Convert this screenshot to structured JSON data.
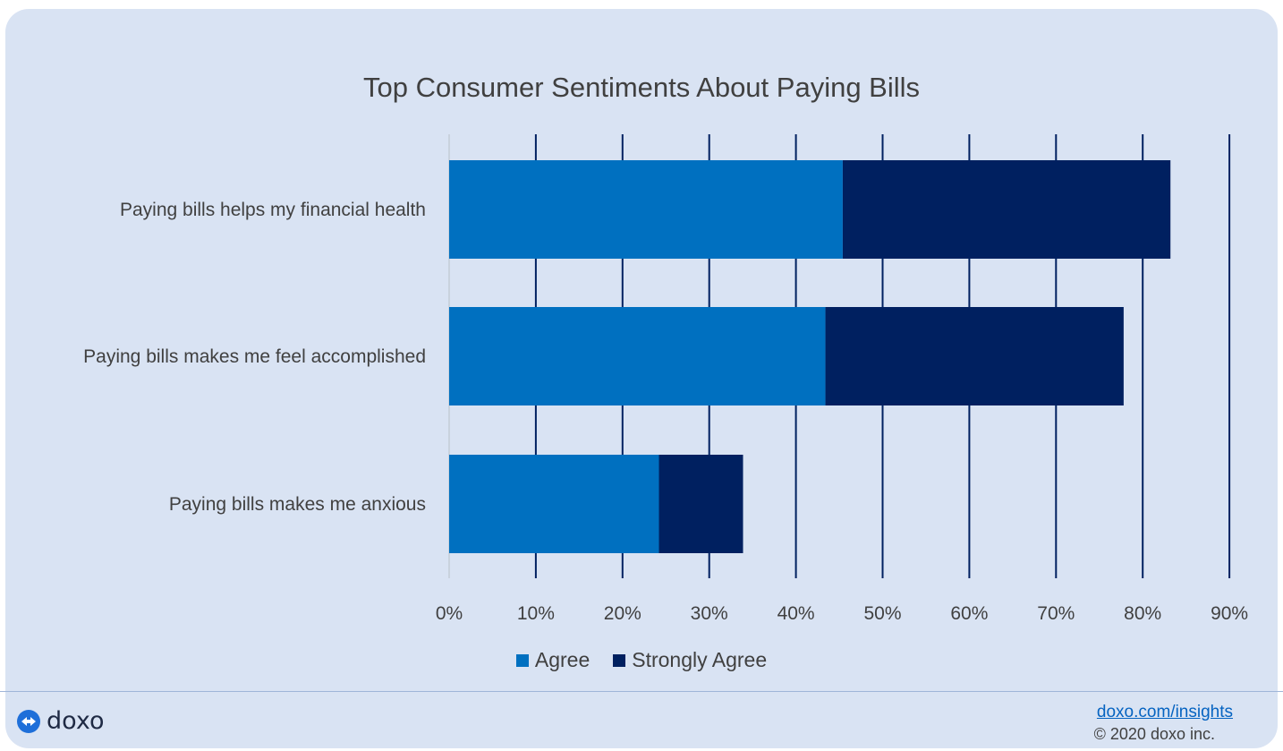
{
  "chart_data": {
    "type": "bar",
    "orientation": "horizontal",
    "stacked": true,
    "title": "Top Consumer Sentiments About Paying Bills",
    "categories": [
      "Paying bills helps my financial health",
      "Paying bills makes me feel accomplished",
      "Paying bills makes me anxious"
    ],
    "series": [
      {
        "name": "Agree",
        "color": "#0070c0",
        "values": [
          45.4,
          43.4,
          24.2
        ]
      },
      {
        "name": "Strongly Agree",
        "color": "#002060",
        "values": [
          37.8,
          34.4,
          9.7
        ]
      }
    ],
    "xlim": [
      0,
      90
    ],
    "xticks": [
      "0%",
      "10%",
      "20%",
      "30%",
      "40%",
      "50%",
      "60%",
      "70%",
      "80%",
      "90%"
    ],
    "grid": "vertical",
    "legend": "bottom"
  },
  "brand": {
    "name": "doxo"
  },
  "footer": {
    "link": "doxo.com/insights",
    "copyright": "© 2020 doxo inc."
  }
}
